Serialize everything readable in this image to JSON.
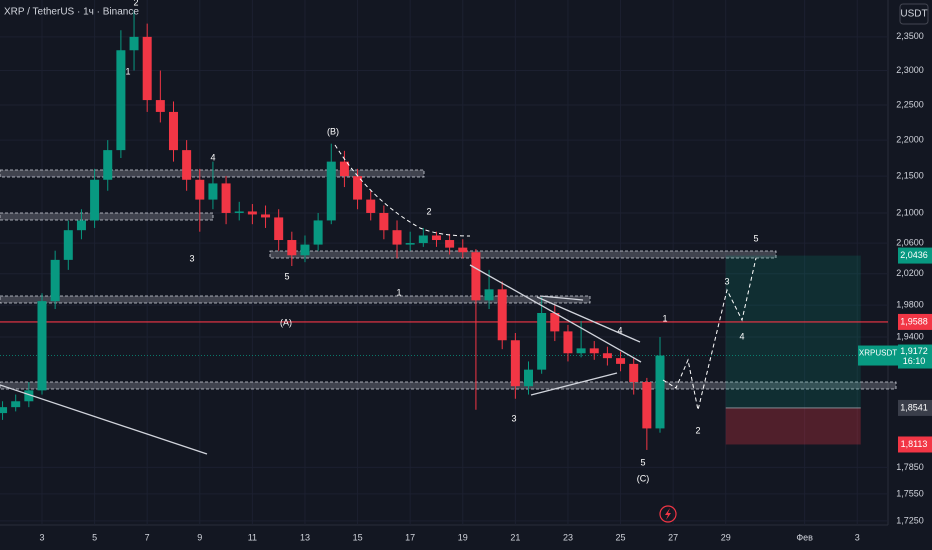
{
  "header": {
    "symbol": "XRP / TetherUS · 1ч · Binance",
    "currency": "USDT"
  },
  "chart_data": {
    "type": "candlestick",
    "x": [
      1.5,
      2,
      2.5,
      3,
      3.5,
      4,
      4.5,
      5,
      5.5,
      6,
      6.5,
      7,
      7.5,
      8,
      8.5,
      9,
      9.5,
      10,
      10.5,
      11,
      11.5,
      12,
      12.5,
      13,
      13.5,
      14,
      14.5,
      15,
      15.5,
      16,
      16.5,
      17,
      17.5,
      18,
      18.5,
      19,
      19.5,
      20,
      20.5,
      21,
      21.5,
      22,
      22.5,
      23,
      23.5,
      24,
      24.5,
      25,
      25.5,
      26,
      26.5
    ],
    "open": [
      1.848,
      1.855,
      1.862,
      1.875,
      1.985,
      2.038,
      2.077,
      2.09,
      2.145,
      2.186,
      2.33,
      2.35,
      2.257,
      2.24,
      2.186,
      2.145,
      2.118,
      2.14,
      2.1,
      2.102,
      2.098,
      2.094,
      2.064,
      2.044,
      2.058,
      2.09,
      2.17,
      2.15,
      2.118,
      2.1,
      2.077,
      2.058,
      2.06,
      2.07,
      2.064,
      2.054,
      2.048,
      1.986,
      2.0,
      1.936,
      1.88,
      1.9,
      1.97,
      1.947,
      1.92,
      1.926,
      1.92,
      1.914,
      1.907,
      1.885,
      1.83
    ],
    "high": [
      1.862,
      1.87,
      1.885,
      1.995,
      2.05,
      2.09,
      2.105,
      2.16,
      2.2,
      2.36,
      2.39,
      2.37,
      2.3,
      2.255,
      2.2,
      2.16,
      2.17,
      2.15,
      2.115,
      2.112,
      2.11,
      2.105,
      2.075,
      2.07,
      2.1,
      2.195,
      2.185,
      2.16,
      2.13,
      2.11,
      2.09,
      2.075,
      2.08,
      2.075,
      2.072,
      2.065,
      2.052,
      2.025,
      2.01,
      1.945,
      1.91,
      1.99,
      1.98,
      1.955,
      1.96,
      1.935,
      1.928,
      1.922,
      1.915,
      1.89,
      1.94
    ],
    "low": [
      1.84,
      1.85,
      1.855,
      1.87,
      1.975,
      2.025,
      2.065,
      2.08,
      2.13,
      2.175,
      2.3,
      2.24,
      2.225,
      2.17,
      2.13,
      2.075,
      2.105,
      2.085,
      2.09,
      2.085,
      2.08,
      2.05,
      2.03,
      2.035,
      2.05,
      2.085,
      2.135,
      2.105,
      2.09,
      2.065,
      2.04,
      2.05,
      2.055,
      2.055,
      2.045,
      2.04,
      1.852,
      1.975,
      1.925,
      1.865,
      1.87,
      1.895,
      1.935,
      1.91,
      1.915,
      1.912,
      1.905,
      1.898,
      1.87,
      1.805,
      1.825
    ],
    "close": [
      1.855,
      1.862,
      1.875,
      1.985,
      2.038,
      2.077,
      2.09,
      2.145,
      2.186,
      2.33,
      2.35,
      2.257,
      2.24,
      2.186,
      2.145,
      2.118,
      2.14,
      2.1,
      2.102,
      2.098,
      2.094,
      2.064,
      2.044,
      2.058,
      2.09,
      2.17,
      2.15,
      2.118,
      2.1,
      2.077,
      2.058,
      2.06,
      2.07,
      2.064,
      2.054,
      2.048,
      1.986,
      2.0,
      1.936,
      1.88,
      1.9,
      1.97,
      1.947,
      1.92,
      1.926,
      1.92,
      1.914,
      1.907,
      1.885,
      1.83,
      1.9172
    ],
    "up_color": "#089981",
    "down_color": "#f23645",
    "log_scale": true,
    "grid": true,
    "xlim": [
      1.403,
      35.17
    ],
    "ylim": [
      1.7205,
      2.406
    ],
    "xticks": [
      3,
      5,
      7,
      9,
      11,
      13,
      15,
      17,
      19,
      21,
      23,
      25,
      27,
      29,
      {
        "value": 32,
        "label": "Фев"
      },
      {
        "value": 34,
        "label": "3"
      }
    ],
    "yticks": [
      {
        "value": 2.35,
        "label": "2,3500"
      },
      {
        "value": 2.3,
        "label": "2,3000"
      },
      {
        "value": 2.25,
        "label": "2,2500"
      },
      {
        "value": 2.2,
        "label": "2,2000"
      },
      {
        "value": 2.15,
        "label": "2,1500"
      },
      {
        "value": 2.1,
        "label": "2,1000"
      },
      {
        "value": 2.06,
        "label": "2,0600"
      },
      {
        "value": 2.02,
        "label": "2,0200"
      },
      {
        "value": 1.98,
        "label": "1,9800"
      },
      {
        "value": 1.94,
        "label": "1,9400"
      },
      {
        "value": 1.785,
        "label": "1,7850"
      },
      {
        "value": 1.755,
        "label": "1,7550"
      },
      {
        "value": 1.725,
        "label": "1,7250"
      }
    ],
    "annotations": [
      "2",
      "1",
      "4",
      "3",
      "5",
      "(B)",
      "2",
      "1",
      "(A)",
      "3",
      "4",
      "1",
      "5",
      "(C)",
      "2",
      "3",
      "4",
      "5"
    ],
    "price_labels": [
      {
        "value": 2.0436,
        "label": "2,0436",
        "color": "#089981"
      },
      {
        "value": 1.9588,
        "label": "1,9588",
        "color": "#f23645"
      },
      {
        "value": 1.9172,
        "label": "1,9172",
        "name": "XRPUSDT",
        "time": "16:10",
        "color": "#089981"
      },
      {
        "value": 1.8541,
        "label": "1,8541",
        "color": "#3a3e4a"
      },
      {
        "value": 1.8113,
        "label": "1,8113",
        "color": "#f23645"
      }
    ]
  }
}
